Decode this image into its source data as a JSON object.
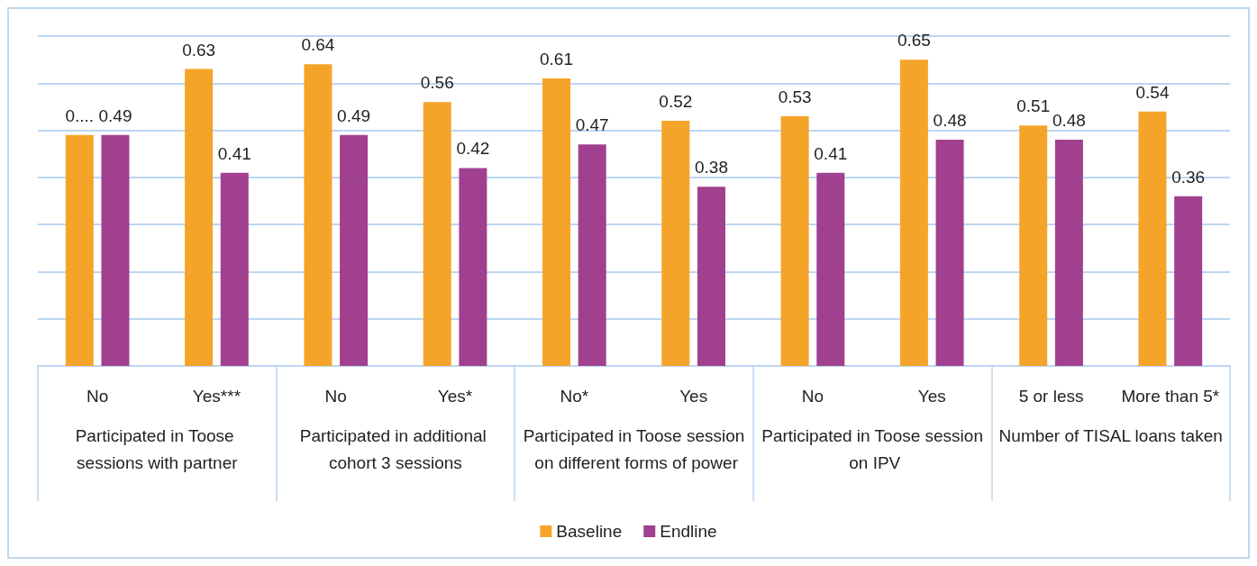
{
  "chart_data": {
    "type": "bar",
    "categories": [
      "No",
      "Yes***",
      "No",
      "Yes*",
      "No*",
      "Yes",
      "No",
      "Yes",
      "5 or less",
      "More than 5*"
    ],
    "series": [
      {
        "name": "Baseline",
        "color": "#f5a42a",
        "values": [
          0.49,
          0.63,
          0.64,
          0.56,
          0.61,
          0.52,
          0.53,
          0.65,
          0.51,
          0.54
        ],
        "value_labels": [
          "0....",
          "0.63",
          "0.64",
          "0.56",
          "0.61",
          "0.52",
          "0.53",
          "0.65",
          "0.51",
          "0.54"
        ]
      },
      {
        "name": "Endline",
        "color": "#a0408e",
        "values": [
          0.49,
          0.41,
          0.49,
          0.42,
          0.47,
          0.38,
          0.41,
          0.48,
          0.48,
          0.36
        ],
        "value_labels": [
          "0.49",
          "0.41",
          "0.49",
          "0.42",
          "0.47",
          "0.38",
          "0.41",
          "0.48",
          "0.48",
          "0.36"
        ]
      }
    ],
    "annotations": [
      "Participated in Toose sessions with partner",
      "Participated in additional cohort 3 sessions",
      "Participated in Toose session on different forms of power",
      "Participated in Toose session on IPV",
      "Number of TISAL loans taken"
    ],
    "ylim": [
      0,
      0.7
    ],
    "yticks": [
      {
        "value": 0,
        "label": null
      },
      {
        "value": 0.1,
        "label": null
      },
      {
        "value": 0.2,
        "label": null
      },
      {
        "value": 0.3,
        "label": null
      },
      {
        "value": 0.4,
        "label": null
      },
      {
        "value": 0.5,
        "label": null
      },
      {
        "value": 0.6,
        "label": null
      },
      {
        "value": 0.7,
        "label": null
      }
    ],
    "grid": "y",
    "legend": "bottom",
    "tick_labels": "x"
  }
}
